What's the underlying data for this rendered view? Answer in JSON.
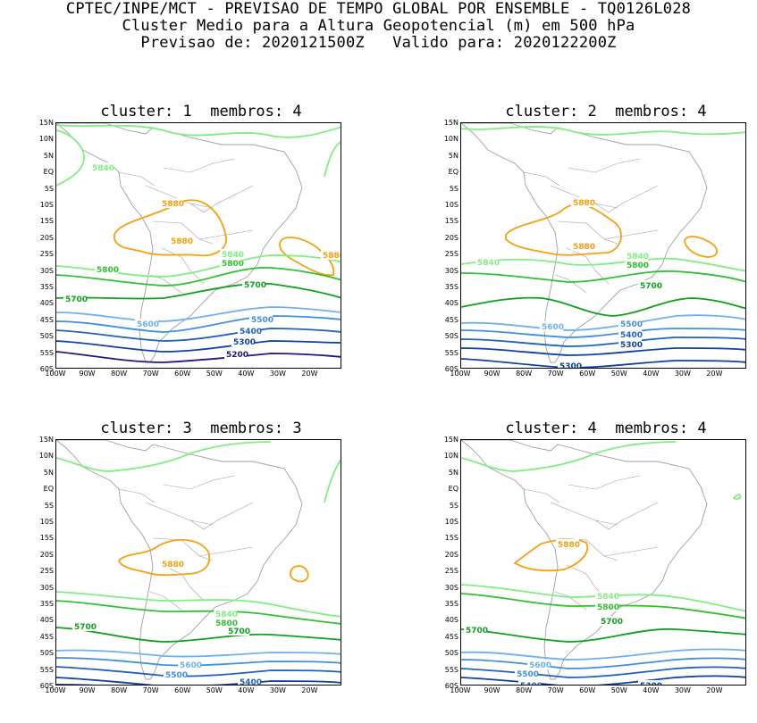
{
  "header": {
    "line1": "CPTEC/INPE/MCT - PREVISAO DE TEMPO GLOBAL POR ENSEMBLE - TQ0126L028",
    "line2": "Cluster Medio para a Altura Geopotencial (m) em 500 hPa",
    "line3": "Previsao de: 2020121500Z   Valido para: 2020122200Z"
  },
  "axes": {
    "y_labels": [
      "15N",
      "10N",
      "5N",
      "EQ",
      "5S",
      "10S",
      "15S",
      "20S",
      "25S",
      "30S",
      "35S",
      "40S",
      "45S",
      "50S",
      "55S",
      "60S"
    ],
    "x_labels": [
      "100W",
      "90W",
      "80W",
      "70W",
      "60W",
      "50W",
      "40W",
      "30W",
      "20W"
    ]
  },
  "colors": {
    "c5880": "#f5a010",
    "c5840": "#80ee80",
    "c5800": "#30c030",
    "c5700": "#10a020",
    "c5600": "#70b0f0",
    "c5500": "#4090e0",
    "c5400": "#2060c0",
    "c5300": "#1040a0",
    "c5200": "#201880",
    "coast": "#a0a0a0"
  },
  "chart_data": [
    {
      "type": "contour-map",
      "title": "cluster: 1  membros: 4",
      "x_range_deg": [
        -100,
        -10
      ],
      "y_range_deg": [
        -60,
        15
      ],
      "labels": [
        "5880",
        "5880",
        "5880",
        "5840",
        "5840",
        "5800",
        "5800",
        "5700",
        "5700",
        "5600",
        "5500",
        "5400",
        "5300",
        "5200"
      ]
    },
    {
      "type": "contour-map",
      "title": "cluster: 2  membros: 4",
      "x_range_deg": [
        -100,
        -10
      ],
      "y_range_deg": [
        -60,
        15
      ],
      "labels": [
        "5880",
        "5880",
        "5840",
        "5840",
        "5800",
        "5700",
        "5600",
        "5500",
        "5400",
        "5300",
        "5300"
      ]
    },
    {
      "type": "contour-map",
      "title": "cluster: 3  membros: 3",
      "x_range_deg": [
        -100,
        -10
      ],
      "y_range_deg": [
        -60,
        15
      ],
      "labels": [
        "5880",
        "5840",
        "5800",
        "5700",
        "5700",
        "5600",
        "5500",
        "5400",
        "5300"
      ]
    },
    {
      "type": "contour-map",
      "title": "cluster: 4  membros: 4",
      "x_range_deg": [
        -100,
        -10
      ],
      "y_range_deg": [
        -60,
        15
      ],
      "labels": [
        "5880",
        "5840",
        "5800",
        "5700",
        "5700",
        "5600",
        "5500",
        "5400",
        "5300"
      ]
    }
  ]
}
